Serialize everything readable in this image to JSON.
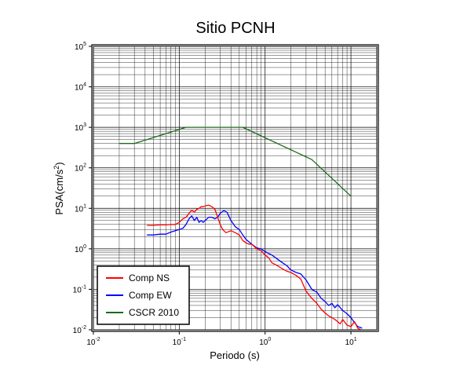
{
  "chart_data": {
    "type": "line",
    "title": "Sitio PCNH",
    "xlabel": "Periodo (s)",
    "ylabel_base": "PSA(cm/s",
    "ylabel_exp": "2",
    "ylabel_end": ")",
    "xscale": "log",
    "yscale": "log",
    "xlim": [
      0.01,
      20
    ],
    "ylim": [
      0.01,
      100000
    ],
    "grid": true,
    "legend_position": "bottom-left",
    "x_ticks": [
      {
        "value": 0.01,
        "base": "10",
        "exp": "-2"
      },
      {
        "value": 0.1,
        "base": "10",
        "exp": "-1"
      },
      {
        "value": 1,
        "base": "10",
        "exp": "0"
      },
      {
        "value": 10,
        "base": "10",
        "exp": "1"
      }
    ],
    "y_ticks": [
      {
        "value": 0.01,
        "base": "10",
        "exp": "-2"
      },
      {
        "value": 0.1,
        "base": "10",
        "exp": "-1"
      },
      {
        "value": 1,
        "base": "10",
        "exp": "0"
      },
      {
        "value": 10,
        "base": "10",
        "exp": "1"
      },
      {
        "value": 100,
        "base": "10",
        "exp": "2"
      },
      {
        "value": 1000,
        "base": "10",
        "exp": "3"
      },
      {
        "value": 10000,
        "base": "10",
        "exp": "4"
      },
      {
        "value": 100000,
        "base": "10",
        "exp": "5"
      }
    ],
    "series": [
      {
        "name": "Comp NS",
        "color": "#ff0000",
        "x": [
          0.042,
          0.05,
          0.06,
          0.07,
          0.08,
          0.09,
          0.1,
          0.11,
          0.12,
          0.13,
          0.14,
          0.15,
          0.16,
          0.17,
          0.18,
          0.19,
          0.2,
          0.22,
          0.24,
          0.26,
          0.28,
          0.3,
          0.32,
          0.35,
          0.4,
          0.45,
          0.5,
          0.55,
          0.6,
          0.65,
          0.7,
          0.8,
          0.9,
          1.0,
          1.1,
          1.2,
          1.4,
          1.6,
          1.8,
          2.0,
          2.3,
          2.6,
          3.0,
          3.5,
          4.0,
          4.5,
          5.0,
          5.5,
          6.0,
          6.5,
          7.0,
          7.5,
          8.0,
          9.0,
          10.0,
          11.0,
          12.0,
          13.0
        ],
        "y": [
          3.8,
          3.8,
          3.9,
          3.9,
          4.0,
          4.0,
          4.5,
          5.5,
          6.0,
          7.5,
          9.0,
          8.0,
          9.5,
          10.0,
          11.0,
          11.0,
          11.5,
          12.0,
          11.0,
          9.5,
          6.0,
          4.0,
          3.0,
          2.5,
          2.8,
          2.5,
          2.2,
          1.6,
          1.4,
          1.3,
          1.3,
          1.0,
          0.9,
          0.7,
          0.6,
          0.45,
          0.38,
          0.32,
          0.28,
          0.26,
          0.22,
          0.18,
          0.09,
          0.06,
          0.045,
          0.032,
          0.026,
          0.022,
          0.02,
          0.018,
          0.016,
          0.014,
          0.018,
          0.013,
          0.012,
          0.016,
          0.011,
          0.01
        ]
      },
      {
        "name": "Comp EW",
        "color": "#0000ff",
        "x": [
          0.042,
          0.05,
          0.06,
          0.07,
          0.08,
          0.09,
          0.1,
          0.11,
          0.12,
          0.13,
          0.14,
          0.15,
          0.16,
          0.17,
          0.18,
          0.19,
          0.2,
          0.22,
          0.24,
          0.26,
          0.28,
          0.3,
          0.33,
          0.36,
          0.4,
          0.45,
          0.5,
          0.55,
          0.6,
          0.7,
          0.8,
          0.9,
          1.0,
          1.2,
          1.4,
          1.6,
          1.8,
          2.0,
          2.3,
          2.6,
          3.0,
          3.5,
          4.0,
          4.5,
          5.0,
          5.5,
          6.0,
          6.5,
          7.0,
          8.0,
          9.0,
          10.0,
          11.0,
          12.0,
          13.5
        ],
        "y": [
          2.2,
          2.2,
          2.3,
          2.3,
          2.6,
          2.8,
          3.0,
          3.2,
          4.0,
          5.5,
          6.5,
          5.0,
          6.0,
          4.5,
          5.0,
          4.5,
          5.0,
          6.0,
          6.0,
          5.5,
          6.0,
          7.5,
          8.8,
          8.0,
          5.0,
          3.5,
          3.0,
          2.2,
          1.7,
          1.3,
          1.05,
          1.0,
          0.85,
          0.7,
          0.55,
          0.45,
          0.38,
          0.3,
          0.26,
          0.24,
          0.17,
          0.1,
          0.085,
          0.06,
          0.05,
          0.04,
          0.045,
          0.035,
          0.042,
          0.03,
          0.025,
          0.02,
          0.015,
          0.012,
          0.011
        ]
      },
      {
        "name": "CSCR 2010",
        "color": "#1a6b1a",
        "x": [
          0.02,
          0.03,
          0.12,
          0.55,
          3.5,
          10.0
        ],
        "y": [
          400,
          400,
          1000,
          1000,
          160,
          20
        ]
      }
    ]
  }
}
